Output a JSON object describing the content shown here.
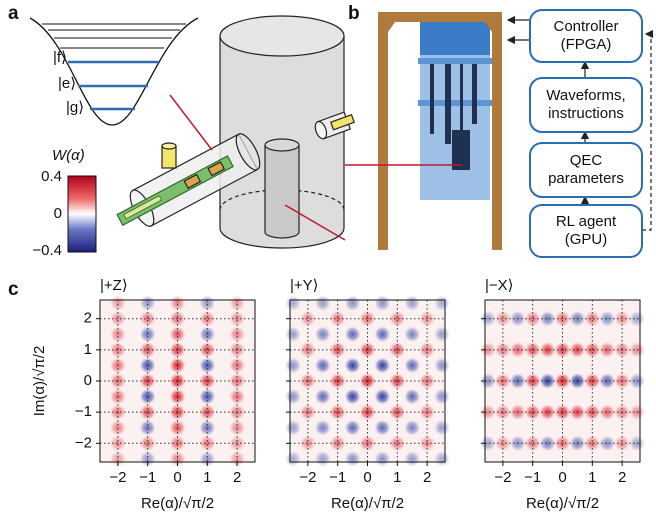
{
  "panel_a": {
    "label": "a",
    "levels": [
      "|f⟩",
      "|e⟩",
      "|g⟩"
    ],
    "colorbar": {
      "title": "W(α)",
      "ticks": [
        "0.4",
        "0",
        "−0.4"
      ]
    }
  },
  "panel_b": {
    "label": "b",
    "boxes": [
      [
        "Controller",
        "(FPGA)"
      ],
      [
        "Waveforms,",
        "instructions"
      ],
      [
        "QEC",
        "parameters"
      ],
      [
        "RL agent",
        "(GPU)"
      ]
    ]
  },
  "panel_c": {
    "label": "c",
    "plots": [
      {
        "title": "|+Z⟩"
      },
      {
        "title": "|+Y⟩"
      },
      {
        "title": "|−X⟩"
      }
    ],
    "xticks": [
      "−2",
      "−1",
      "0",
      "1",
      "2"
    ],
    "yticks": [
      "2",
      "1",
      "0",
      "−1",
      "−2"
    ],
    "xlabel": "Re(α)/√π/2",
    "ylabel": "Im(α)/√π/2"
  }
}
